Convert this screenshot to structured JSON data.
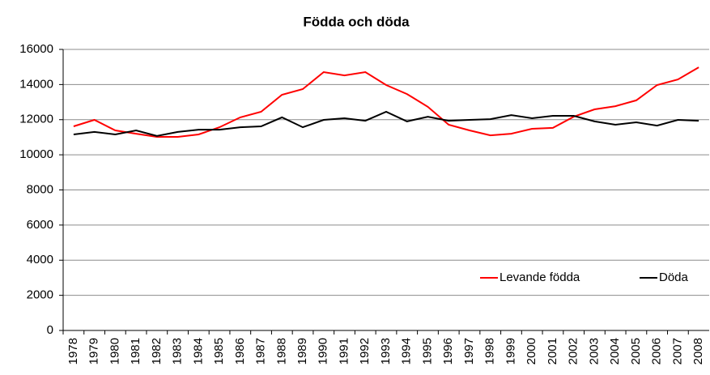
{
  "chart_data": {
    "type": "line",
    "title": "Födda och döda",
    "categories": [
      "1978",
      "1979",
      "1980",
      "1981",
      "1982",
      "1983",
      "1984",
      "1985",
      "1986",
      "1987",
      "1988",
      "1989",
      "1990",
      "1991",
      "1992",
      "1993",
      "1994",
      "1995",
      "1996",
      "1997",
      "1998",
      "1999",
      "2000",
      "2001",
      "2002",
      "2003",
      "2004",
      "2005",
      "2006",
      "2007",
      "2008"
    ],
    "series": [
      {
        "name": "Levande födda",
        "color": "#ff0000",
        "values": [
          11620,
          11990,
          11390,
          11200,
          11020,
          11020,
          11160,
          11570,
          12130,
          12450,
          13420,
          13740,
          14710,
          14520,
          14710,
          13970,
          13460,
          12730,
          11710,
          11390,
          11110,
          11200,
          11480,
          11530,
          12170,
          12590,
          12770,
          13100,
          13970,
          14290,
          14980
        ]
      },
      {
        "name": "Döda",
        "color": "#000000",
        "values": [
          11160,
          11300,
          11160,
          11390,
          11070,
          11300,
          11430,
          11430,
          11570,
          11620,
          12130,
          11570,
          11990,
          12080,
          11940,
          12450,
          11900,
          12170,
          11940,
          11990,
          12030,
          12260,
          12080,
          12220,
          12220,
          11900,
          11710,
          11850,
          11660,
          11990,
          11940
        ]
      }
    ],
    "ylim": [
      0,
      16000
    ],
    "yticks": [
      0,
      2000,
      4000,
      6000,
      8000,
      10000,
      12000,
      14000,
      16000
    ],
    "grid": true,
    "legend": "lower right"
  }
}
